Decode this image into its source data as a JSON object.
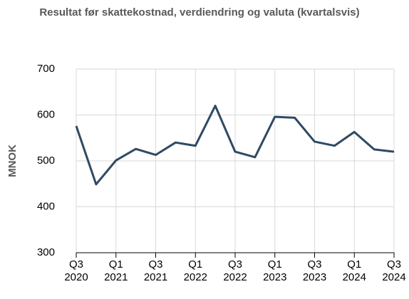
{
  "chart_data": {
    "type": "line",
    "title": "Resultat før skattekostnad, verdiendring og valuta (kvartalsvis)",
    "y_label": "MNOK",
    "categories": [
      "Q3 2020",
      null,
      "Q1 2021",
      null,
      "Q3 2021",
      null,
      "Q1 2022",
      null,
      "Q3 2022",
      null,
      "Q1 2023",
      null,
      "Q3 2023",
      null,
      "Q1 2024",
      null,
      "Q3 2024"
    ],
    "series": [
      {
        "name": "Resultat",
        "color": "#2e4a62",
        "values": [
          576,
          449,
          501,
          526,
          513,
          540,
          533,
          620,
          520,
          508,
          596,
          594,
          542,
          533,
          563,
          525,
          520
        ]
      }
    ],
    "ylim": [
      300,
      700
    ],
    "yticks": [
      300,
      400,
      500,
      600,
      700
    ],
    "grid": true
  }
}
